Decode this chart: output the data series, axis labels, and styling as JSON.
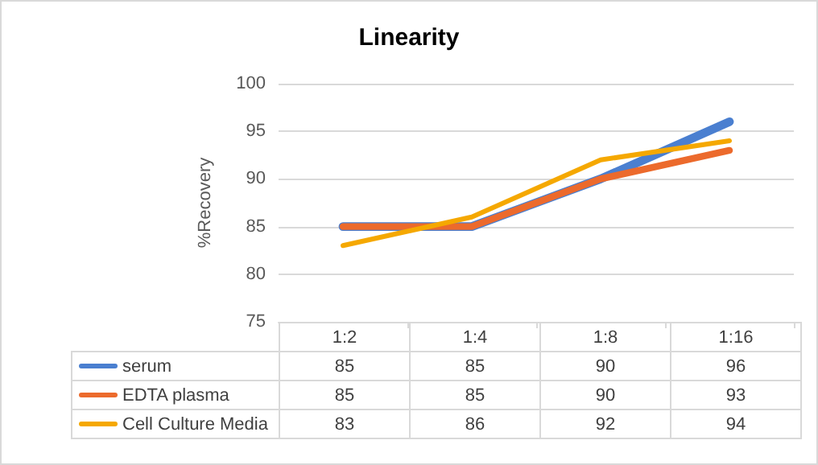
{
  "chart_data": {
    "type": "line",
    "title": "Linearity",
    "ylabel": "%Recovery",
    "categories": [
      "1:2",
      "1:4",
      "1:8",
      "1:16"
    ],
    "series": [
      {
        "name": "serum",
        "color": "#4a7fd0",
        "values": [
          85,
          85,
          90,
          96
        ]
      },
      {
        "name": "EDTA plasma",
        "color": "#ec6a2c",
        "values": [
          85,
          85,
          90,
          93
        ]
      },
      {
        "name": "Cell Culture Media",
        "color": "#f5a800",
        "values": [
          83,
          86,
          92,
          94
        ]
      }
    ],
    "ylim": [
      75,
      100
    ],
    "yticks": [
      75,
      80,
      85,
      90,
      95,
      100
    ],
    "grid": "y",
    "legend": "bottom",
    "data_labels": true,
    "marker": "none",
    "line_style": "solid"
  }
}
